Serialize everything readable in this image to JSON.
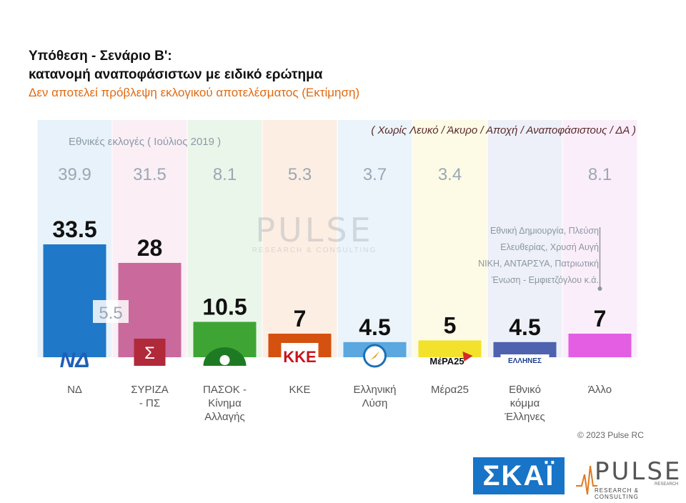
{
  "header": {
    "title_line1": "Υπόθεση - Σενάριο Β':",
    "title_line2": "κατανομή αναποφάσιστων με ειδικό ερώτημα",
    "subtitle": "Δεν αποτελεί πρόβλεψη εκλογικού αποτελέσματος   (Εκτίμηση)",
    "note": "( Χωρίς Λευκό / Άκυρο / Αποχή / Αναποφάσιστους / ΔΑ )",
    "previous_label": "Εθνικές εκλογές  ( Ιούλιος 2019 )"
  },
  "chart_data": {
    "type": "bar",
    "categories": [
      "ΝΔ",
      "ΣΥΡΙΖΑ - ΠΣ",
      "ΠΑΣΟΚ - Κίνημα Αλλαγής",
      "ΚΚΕ",
      "Ελληνική Λύση",
      "Μέρα25",
      "Εθνικό κόμμα Έλληνες",
      "Άλλο"
    ],
    "category_lines": [
      [
        "ΝΔ"
      ],
      [
        "ΣΥΡΙΖΑ",
        "- ΠΣ"
      ],
      [
        "ΠΑΣΟΚ -",
        "Κίνημα",
        "Αλλαγής"
      ],
      [
        "ΚΚΕ"
      ],
      [
        "Ελληνική",
        "Λύση"
      ],
      [
        "Μέρα25"
      ],
      [
        "Εθνικό",
        "κόμμα",
        "Έλληνες"
      ],
      [
        "Άλλο"
      ]
    ],
    "values": [
      33.5,
      28,
      10.5,
      7,
      4.5,
      5,
      4.5,
      7
    ],
    "value_labels": [
      "33.5",
      "28",
      "10.5",
      "7",
      "4.5",
      "5",
      "4.5",
      "7"
    ],
    "previous_2019": [
      "39.9",
      "31.5",
      "8.1",
      "5.3",
      "3.7",
      "3.4",
      "",
      "8.1"
    ],
    "colors": [
      "#1f78c8",
      "#c9699c",
      "#3ea535",
      "#d4510f",
      "#5ba7e0",
      "#f3e22c",
      "#4e62b0",
      "#e35ee3"
    ],
    "bg_colors": [
      "#e8f2fa",
      "#fbeef5",
      "#ebf6ea",
      "#fdeee4",
      "#ebf4fb",
      "#fdfbe6",
      "#edf0f8",
      "#fbeefb"
    ],
    "logos": [
      "ΝΔ",
      "Σ",
      "",
      "ΚΚΕ",
      "",
      "ΜέΡΑ25",
      "ΕΛΛΗΝΕΣ",
      ""
    ],
    "gap_label": "5.5",
    "ylim": [
      0,
      50
    ]
  },
  "watermark": {
    "big": "PULSE",
    "small": "RESEARCH & CONSULTING"
  },
  "other_note_lines": [
    "Εθνική Δημιουργία, Πλεύση",
    "Ελευθερίας, Χρυσή Αυγή",
    "ΝΙΚΗ, ΑΝΤΑΡΣΥΑ, Πατριωτική",
    "Ένωση - Εμφιετζόγλου   κ.ά."
  ],
  "footer": {
    "copyright": "© 2023 Pulse RC",
    "skai_logo": "ΣΚΑΪ",
    "pulse_logo": "PULSE",
    "pulse_logo_small": "RESEARCH & CONSULTING",
    "pulse_logo_sub": "RESEARCH"
  }
}
